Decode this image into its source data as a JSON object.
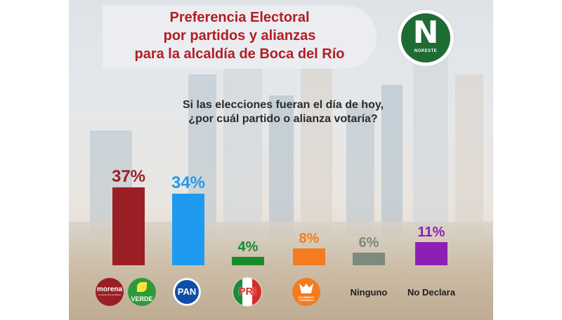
{
  "title_lines": [
    "Preferencia Electoral",
    "por partidos y alianzas",
    "para la alcaldía de Boca del Río"
  ],
  "logo": {
    "letter": "N",
    "word": "NORESTE",
    "color": "#1f6b34"
  },
  "question_lines": [
    "Si las elecciones fueran el día de hoy,",
    "¿por cuál partido o alianza votaría?"
  ],
  "party_logos": {
    "morena": {
      "name": "morena",
      "tagline": "La esperanza de México"
    },
    "verde": {
      "name": "VERDE"
    },
    "pan": {
      "name": "PAN"
    },
    "pri": {
      "name": "PRI"
    },
    "mc": {
      "name": "MOVIMIENTO CIUDADANO"
    }
  },
  "chart_data": {
    "type": "bar",
    "categories": [
      "Morena-Verde",
      "PAN",
      "PRI",
      "MC",
      "Ninguno",
      "No Declara"
    ],
    "x_tick_labels": [
      "",
      "",
      "",
      "",
      "Ninguno",
      "No Declara"
    ],
    "values": [
      37,
      34,
      4,
      8,
      6,
      11
    ],
    "value_labels": [
      "37%",
      "34%",
      "4%",
      "8%",
      "6%",
      "11%"
    ],
    "unit": "%",
    "colors": [
      "#9a1f24",
      "#1e9bf0",
      "#168c2c",
      "#f47b20",
      "#7d8a7c",
      "#8e1fb5"
    ],
    "ylim": [
      0,
      40
    ],
    "grid": false,
    "legend": "none"
  }
}
